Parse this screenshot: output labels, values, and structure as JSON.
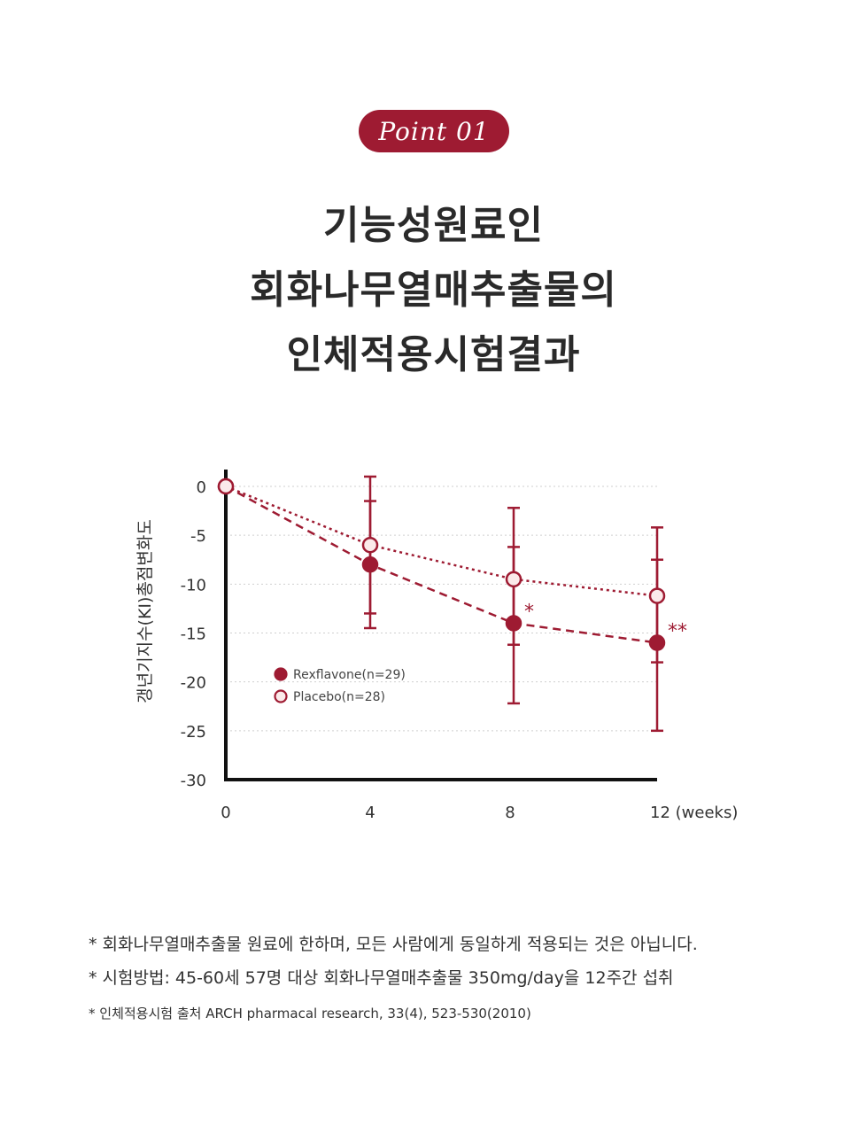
{
  "badge": {
    "label": "Point 01"
  },
  "headline": {
    "lines": [
      "기능성원료인",
      "회화나무열매추출물의",
      "인체적용시험결과"
    ]
  },
  "chart_data": {
    "type": "line",
    "title": "",
    "xlabel": "",
    "ylabel": "갱년기지수(KI)총점변화도",
    "x": [
      0,
      4,
      8,
      12
    ],
    "x_tick_labels": [
      "0",
      "4",
      "8",
      "12 (weeks)"
    ],
    "ylim": [
      -30,
      0
    ],
    "y_ticks": [
      0,
      -5,
      -10,
      -15,
      -20,
      -25,
      -30
    ],
    "y_tick_labels": [
      "0",
      "-5",
      "-10",
      "-15",
      "-20",
      "-25",
      "-30"
    ],
    "grid": "horizontal dotted",
    "legend_position": "left-middle",
    "series": [
      {
        "name": "Rexflavone(n=29)",
        "values": [
          0,
          -8,
          -14,
          -16
        ],
        "error": [
          [
            0,
            0
          ],
          [
            -14.5,
            -1.5
          ],
          [
            -22.2,
            -6.2
          ],
          [
            -25,
            -7.5
          ]
        ],
        "marker": "filled",
        "line": "dashed",
        "color": "#9e1b32"
      },
      {
        "name": "Placebo(n=28)",
        "values": [
          0,
          -6,
          -9.5,
          -11.2
        ],
        "error": [
          [
            0,
            0
          ],
          [
            -13,
            1
          ],
          [
            -16.2,
            -2.2
          ],
          [
            -18,
            -4.2
          ]
        ],
        "marker": "open",
        "line": "dotted",
        "color": "#9e1b32"
      }
    ],
    "annotations": [
      {
        "x": 8,
        "y": -14,
        "text": "*"
      },
      {
        "x": 12,
        "y": -16,
        "text": "**"
      }
    ]
  },
  "notes": [
    "* 회화나무열매추출물 원료에 한하며, 모든 사람에게 동일하게 적용되는 것은 아닙니다.",
    "* 시험방법: 45-60세 57명 대상 회화나무열매추출물 350mg/day을 12주간 섭취",
    "* 인체적용시험 출처  ARCH pharmacal research, 33(4), 523-530(2010)"
  ],
  "colors": {
    "accent": "#9e1b32",
    "marker_open_fill": "#fbeaea"
  }
}
